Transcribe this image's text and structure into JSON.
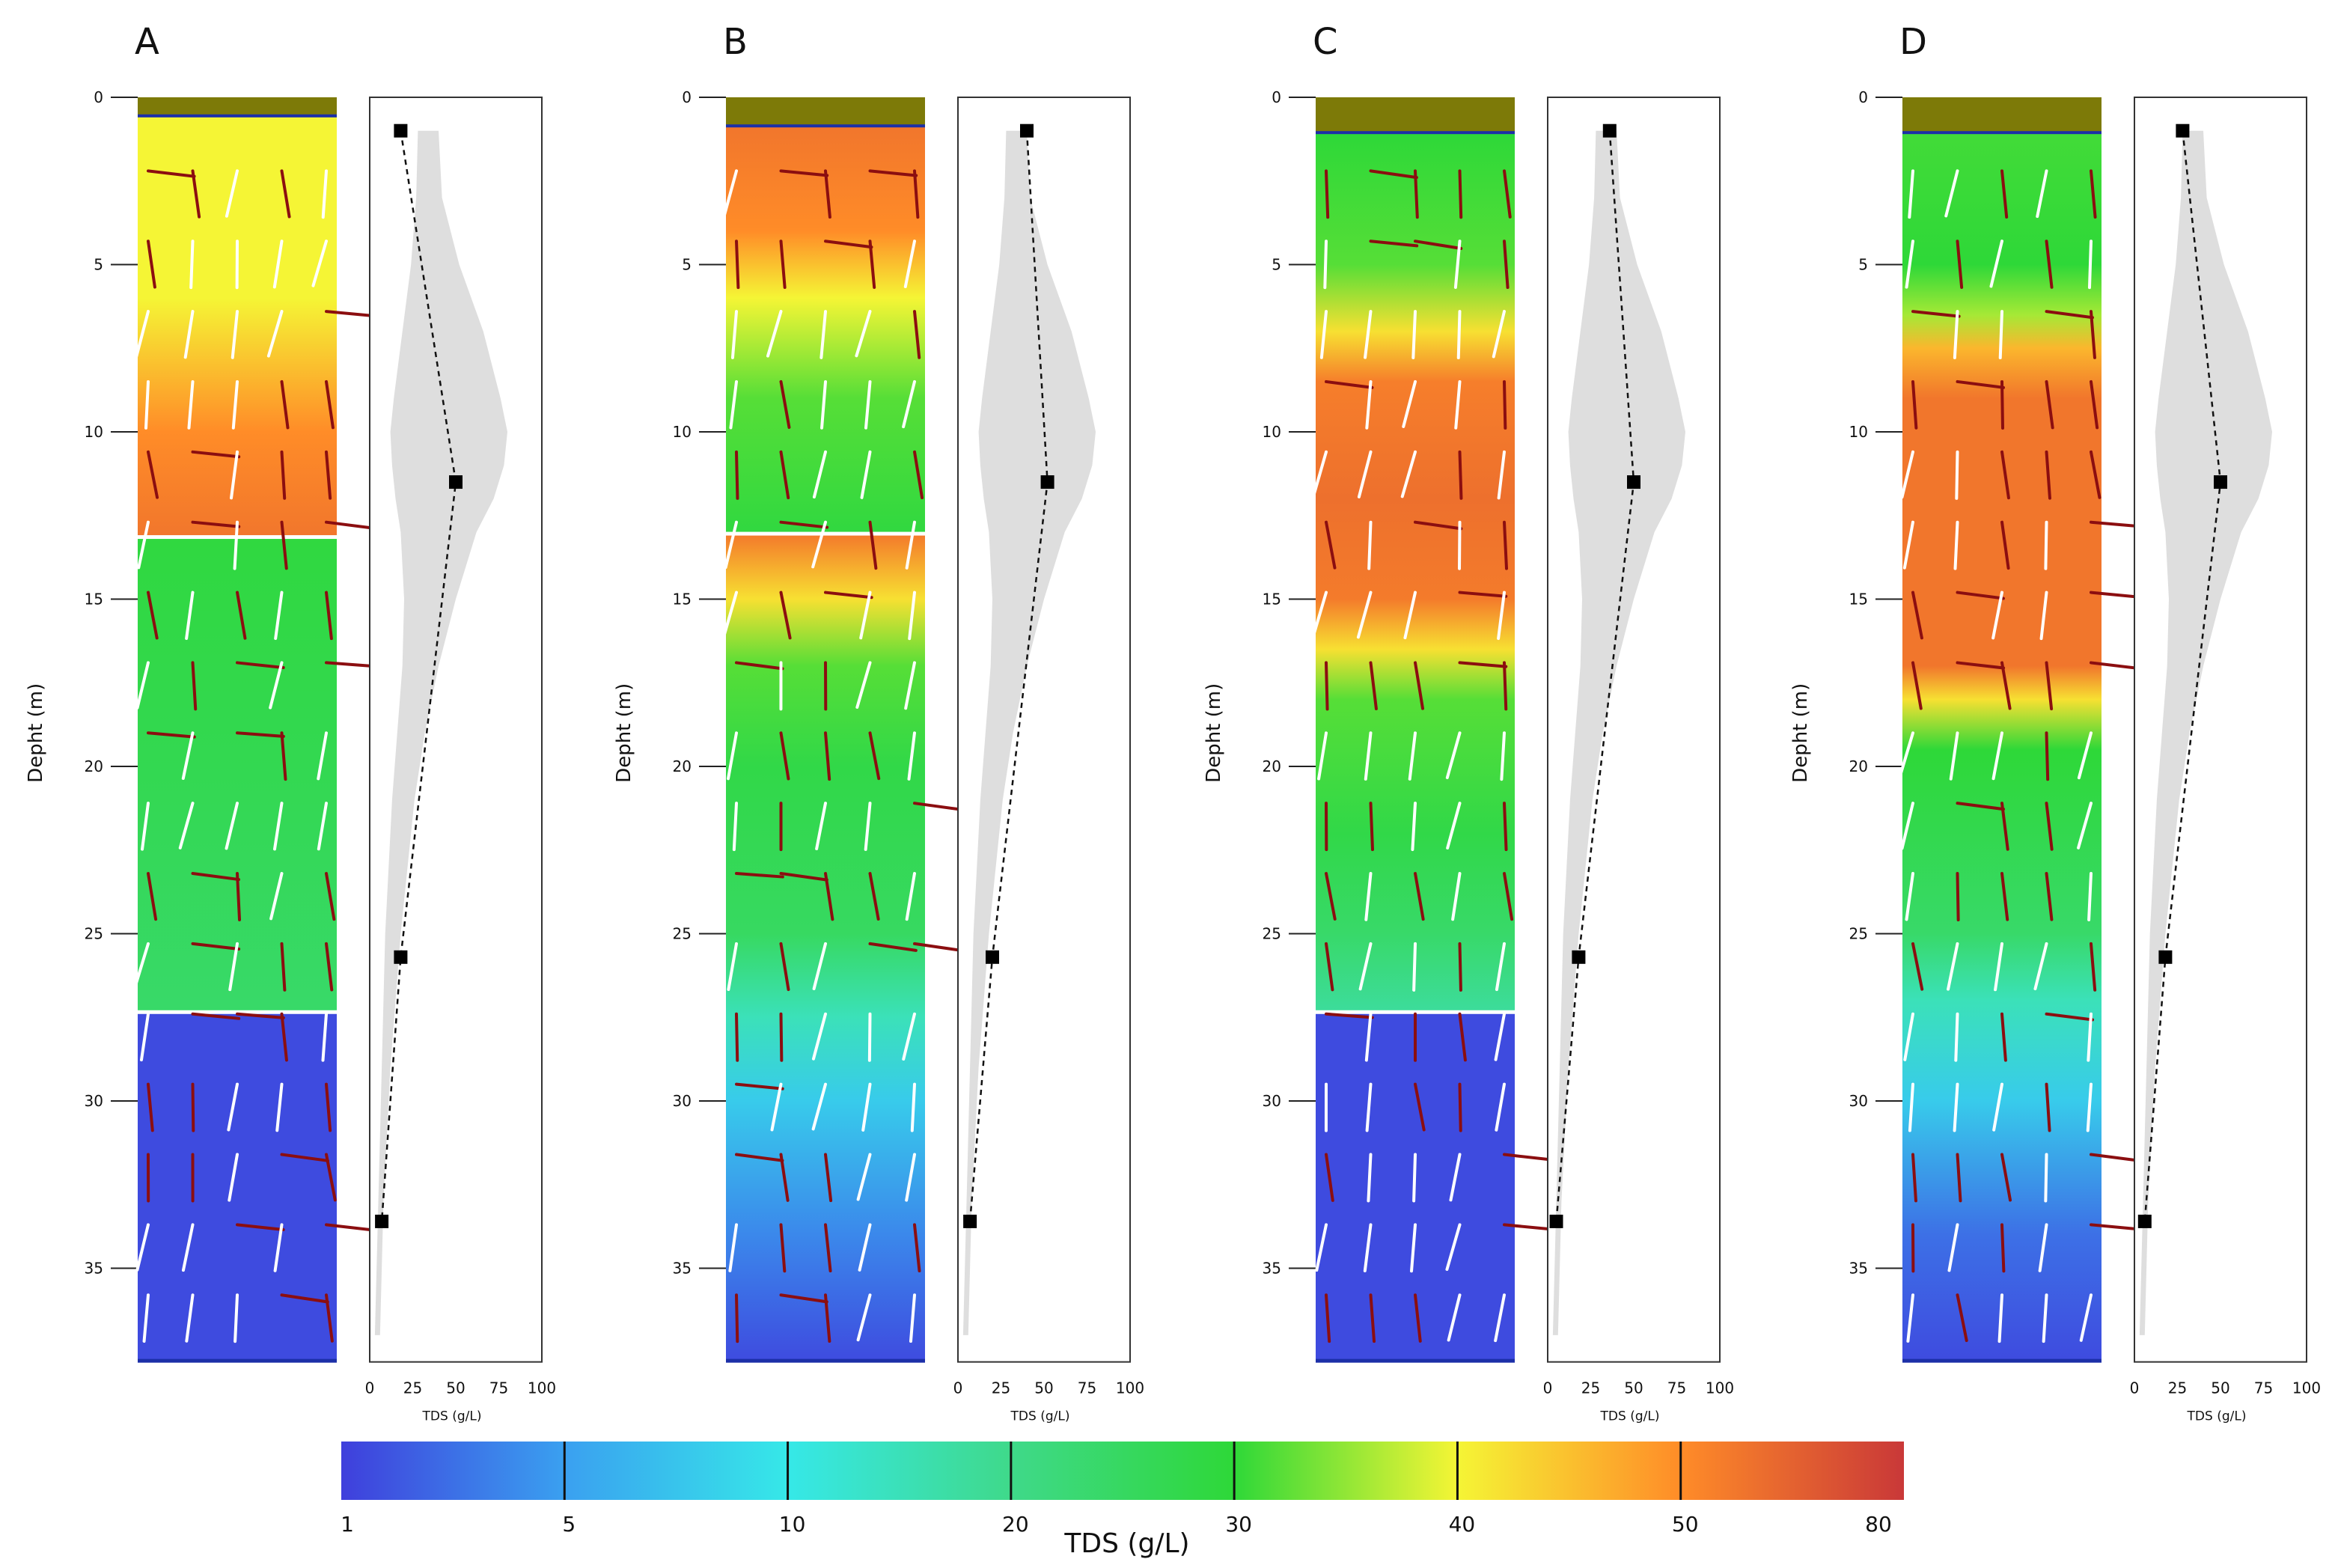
{
  "chart_data": {
    "type": "heatmap",
    "title": "",
    "colorbar": {
      "title": "TDS (g/L)",
      "tick_labels": [
        "1",
        "5",
        "10",
        "20",
        "30",
        "40",
        "50",
        "80"
      ],
      "colors": [
        "#3f3fdc",
        "#3aa0f0",
        "#36e8e8",
        "#3fd98a",
        "#2ed838",
        "#f5f535",
        "#ff8c28",
        "#c93838"
      ]
    },
    "depth_axis": {
      "label": "Depht (m)",
      "range": [
        0,
        38
      ],
      "ticks": [
        "0",
        "5",
        "10",
        "15",
        "20",
        "25",
        "30",
        "35"
      ]
    },
    "profile_axis": {
      "label": "TDS (g/L)",
      "range": [
        0,
        100
      ],
      "ticks": [
        "0",
        "25",
        "50",
        "75",
        "100"
      ]
    },
    "panels": [
      {
        "label": "A",
        "layers": [
          {
            "top": 0,
            "bottom": 0.6,
            "tds": null,
            "kind": "soil"
          },
          {
            "top": 0.6,
            "bottom": 13.2,
            "kind": "zone",
            "gradient": [
              [
                0.6,
                40
              ],
              [
                6,
                40
              ],
              [
                10,
                50
              ],
              [
                13.2,
                58
              ]
            ]
          },
          {
            "top": 13.2,
            "bottom": 27.4,
            "kind": "zone",
            "gradient": [
              [
                13.2,
                29
              ],
              [
                20,
                27
              ],
              [
                27.4,
                24
              ]
            ]
          },
          {
            "top": 27.4,
            "bottom": 37.8,
            "kind": "zone",
            "gradient": [
              [
                27.4,
                1.5
              ],
              [
                37.8,
                1.5
              ]
            ]
          }
        ],
        "markers": [
          {
            "depth": 1,
            "tds": 18
          },
          {
            "depth": 11.5,
            "tds": 50
          },
          {
            "depth": 25.7,
            "tds": 18
          },
          {
            "depth": 33.6,
            "tds": 7
          }
        ]
      },
      {
        "label": "B",
        "layers": [
          {
            "top": 0,
            "bottom": 0.9,
            "tds": null,
            "kind": "soil"
          },
          {
            "top": 0.9,
            "bottom": 13.1,
            "kind": "zone",
            "gradient": [
              [
                0.9,
                58
              ],
              [
                4,
                50
              ],
              [
                6,
                40
              ],
              [
                9,
                32
              ],
              [
                13.1,
                29
              ]
            ]
          },
          {
            "top": 13.1,
            "bottom": 37.8,
            "kind": "zone",
            "gradient": [
              [
                13.1,
                56
              ],
              [
                15,
                42
              ],
              [
                17,
                32
              ],
              [
                20,
                28
              ],
              [
                25,
                25
              ],
              [
                27.5,
                15
              ],
              [
                30,
                8
              ],
              [
                34,
                4
              ],
              [
                37.8,
                1.5
              ]
            ]
          }
        ],
        "markers": [
          {
            "depth": 1,
            "tds": 40
          },
          {
            "depth": 11.5,
            "tds": 52
          },
          {
            "depth": 25.7,
            "tds": 20
          },
          {
            "depth": 33.6,
            "tds": 7
          }
        ]
      },
      {
        "label": "C",
        "layers": [
          {
            "top": 0,
            "bottom": 1.1,
            "tds": null,
            "kind": "soil"
          },
          {
            "top": 1.1,
            "bottom": 27.4,
            "kind": "zone",
            "gradient": [
              [
                1.1,
                30
              ],
              [
                5,
                32
              ],
              [
                7,
                42
              ],
              [
                8.5,
                55
              ],
              [
                12,
                60
              ],
              [
                15,
                56
              ],
              [
                16.5,
                42
              ],
              [
                18,
                32
              ],
              [
                22,
                28
              ],
              [
                25,
                24
              ],
              [
                27.4,
                18
              ]
            ]
          },
          {
            "top": 27.4,
            "bottom": 37.8,
            "kind": "zone",
            "gradient": [
              [
                27.4,
                1.5
              ],
              [
                37.8,
                1.5
              ]
            ]
          }
        ],
        "markers": [
          {
            "depth": 1,
            "tds": 36
          },
          {
            "depth": 11.5,
            "tds": 50
          },
          {
            "depth": 25.7,
            "tds": 18
          },
          {
            "depth": 33.6,
            "tds": 5
          }
        ]
      },
      {
        "label": "D",
        "layers": [
          {
            "top": 0,
            "bottom": 1.1,
            "tds": null,
            "kind": "soil"
          },
          {
            "top": 1.1,
            "bottom": 37.8,
            "kind": "zone",
            "gradient": [
              [
                1.1,
                31
              ],
              [
                5,
                30
              ],
              [
                6.5,
                36
              ],
              [
                7.5,
                46
              ],
              [
                9,
                58
              ],
              [
                17,
                58
              ],
              [
                18,
                42
              ],
              [
                19.5,
                30
              ],
              [
                25,
                24
              ],
              [
                27,
                15
              ],
              [
                30,
                8
              ],
              [
                34,
                3
              ],
              [
                37.8,
                1.5
              ]
            ]
          }
        ],
        "markers": [
          {
            "depth": 1,
            "tds": 28
          },
          {
            "depth": 11.5,
            "tds": 50
          },
          {
            "depth": 25.7,
            "tds": 18
          },
          {
            "depth": 33.6,
            "tds": 6
          }
        ]
      }
    ],
    "uncertainty_band": {
      "depths": [
        1,
        3,
        5,
        7,
        9,
        10,
        11,
        12,
        13,
        15,
        17,
        19,
        21,
        23,
        25,
        27,
        29,
        31,
        33,
        35,
        37
      ],
      "lower": [
        28,
        27,
        24,
        19,
        14,
        12,
        13,
        15,
        18,
        20,
        19,
        16,
        13,
        11,
        9,
        8,
        7,
        6,
        5,
        4,
        3
      ],
      "upper": [
        40,
        42,
        52,
        66,
        76,
        80,
        78,
        72,
        62,
        50,
        40,
        32,
        26,
        22,
        18,
        15,
        12,
        10,
        8,
        7,
        6
      ]
    }
  }
}
